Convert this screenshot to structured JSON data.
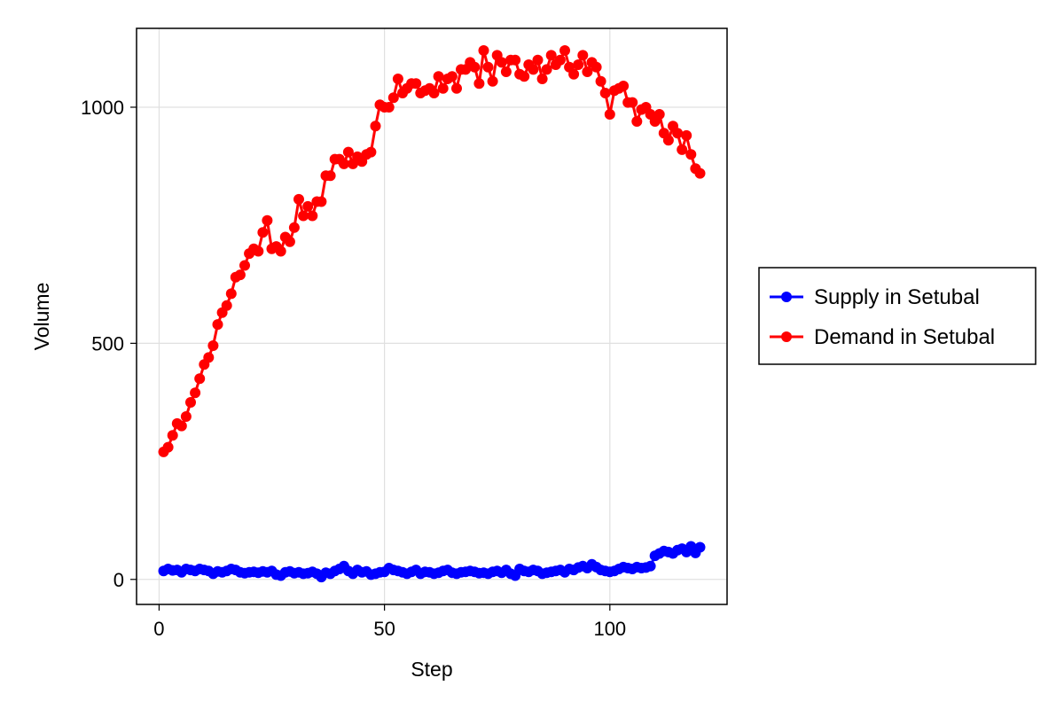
{
  "chart_data": {
    "type": "line",
    "xlabel": "Step",
    "ylabel": "Volume",
    "xlim": [
      -5,
      126
    ],
    "ylim": [
      -53,
      1167
    ],
    "x_ticks": [
      0,
      50,
      100
    ],
    "y_ticks": [
      0,
      500,
      1000
    ],
    "x_tick_labels": [
      "0",
      "50",
      "100"
    ],
    "y_tick_labels": [
      "0",
      "500",
      "1000"
    ],
    "grid": true,
    "legend_position": "right",
    "x": [
      1,
      2,
      3,
      4,
      5,
      6,
      7,
      8,
      9,
      10,
      11,
      12,
      13,
      14,
      15,
      16,
      17,
      18,
      19,
      20,
      21,
      22,
      23,
      24,
      25,
      26,
      27,
      28,
      29,
      30,
      31,
      32,
      33,
      34,
      35,
      36,
      37,
      38,
      39,
      40,
      41,
      42,
      43,
      44,
      45,
      46,
      47,
      48,
      49,
      50,
      51,
      52,
      53,
      54,
      55,
      56,
      57,
      58,
      59,
      60,
      61,
      62,
      63,
      64,
      65,
      66,
      67,
      68,
      69,
      70,
      71,
      72,
      73,
      74,
      75,
      76,
      77,
      78,
      79,
      80,
      81,
      82,
      83,
      84,
      85,
      86,
      87,
      88,
      89,
      90,
      91,
      92,
      93,
      94,
      95,
      96,
      97,
      98,
      99,
      100,
      101,
      102,
      103,
      104,
      105,
      106,
      107,
      108,
      109,
      110,
      111,
      112,
      113,
      114,
      115,
      116,
      117,
      118,
      119,
      120
    ],
    "series": [
      {
        "name": "Supply in Setubal",
        "color": "#0000ff",
        "values": [
          18,
          22,
          19,
          20,
          15,
          22,
          20,
          18,
          22,
          20,
          18,
          12,
          17,
          15,
          18,
          22,
          20,
          15,
          13,
          15,
          16,
          14,
          17,
          15,
          18,
          10,
          8,
          15,
          17,
          13,
          15,
          12,
          13,
          16,
          12,
          5,
          14,
          12,
          18,
          22,
          28,
          18,
          12,
          20,
          15,
          17,
          10,
          12,
          15,
          16,
          24,
          20,
          18,
          15,
          12,
          16,
          20,
          12,
          16,
          15,
          12,
          14,
          18,
          20,
          14,
          12,
          15,
          16,
          18,
          16,
          13,
          14,
          12,
          16,
          18,
          14,
          20,
          12,
          8,
          22,
          18,
          16,
          20,
          18,
          12,
          14,
          16,
          18,
          20,
          15,
          22,
          20,
          25,
          28,
          24,
          32,
          26,
          20,
          18,
          16,
          18,
          22,
          26,
          24,
          22,
          26,
          24,
          25,
          28,
          50,
          55,
          60,
          58,
          55,
          62,
          65,
          58,
          70,
          56,
          68
        ]
      },
      {
        "name": "Demand in Setubal",
        "color": "#ff0000",
        "values": [
          270,
          280,
          305,
          330,
          325,
          345,
          375,
          395,
          425,
          455,
          470,
          495,
          540,
          565,
          580,
          605,
          640,
          645,
          665,
          690,
          700,
          695,
          735,
          760,
          700,
          705,
          695,
          725,
          715,
          745,
          805,
          770,
          790,
          770,
          800,
          800,
          855,
          855,
          890,
          890,
          880,
          905,
          880,
          895,
          885,
          900,
          905,
          960,
          1005,
          1000,
          1000,
          1020,
          1060,
          1030,
          1040,
          1050,
          1050,
          1030,
          1035,
          1040,
          1030,
          1065,
          1040,
          1060,
          1065,
          1040,
          1080,
          1080,
          1095,
          1085,
          1050,
          1120,
          1085,
          1055,
          1110,
          1095,
          1075,
          1100,
          1100,
          1070,
          1065,
          1090,
          1080,
          1100,
          1060,
          1080,
          1110,
          1090,
          1100,
          1120,
          1085,
          1070,
          1090,
          1110,
          1075,
          1095,
          1085,
          1055,
          1030,
          985,
          1035,
          1040,
          1045,
          1010,
          1010,
          970,
          995,
          1000,
          985,
          970,
          985,
          945,
          930,
          960,
          945,
          910,
          940,
          900,
          870,
          860
        ]
      }
    ]
  }
}
